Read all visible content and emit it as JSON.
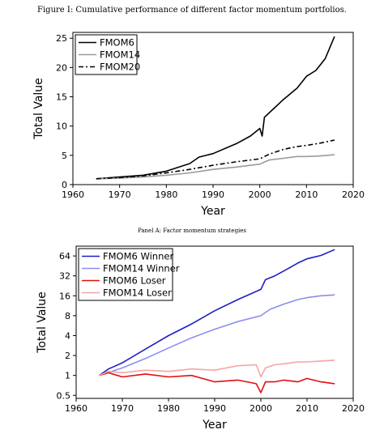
{
  "figure_title": "Figure I: Cumulative performance of different factor momentum portfolios.",
  "panel_a_caption": "Panel A: Factor momentum strategies",
  "chart_data": [
    {
      "type": "line",
      "title": "",
      "xlabel": "Year",
      "ylabel": "Total Value",
      "xlim": [
        1960,
        2020
      ],
      "ylim": [
        0,
        26
      ],
      "xticks": [
        1960,
        1970,
        1980,
        1990,
        2000,
        2010,
        2020
      ],
      "yticks": [
        0,
        5,
        10,
        15,
        20,
        25
      ],
      "legend_position": "top-left",
      "grid": false,
      "series": [
        {
          "name": "FMOM6",
          "color": "#000000",
          "dash": "solid",
          "x": [
            1965,
            1970,
            1975,
            1980,
            1985,
            1987,
            1990,
            1995,
            1998,
            2000,
            2000.5,
            2001,
            2003,
            2005,
            2008,
            2010,
            2012,
            2014,
            2016
          ],
          "y": [
            1.0,
            1.3,
            1.6,
            2.3,
            3.6,
            4.7,
            5.3,
            7.0,
            8.3,
            9.6,
            8.3,
            11.5,
            13.0,
            14.5,
            16.5,
            18.5,
            19.5,
            21.5,
            25.3
          ]
        },
        {
          "name": "FMOM14",
          "color": "#9a9a9a",
          "dash": "solid",
          "x": [
            1965,
            1970,
            1975,
            1980,
            1985,
            1990,
            1995,
            2000,
            2002,
            2005,
            2008,
            2010,
            2013,
            2016
          ],
          "y": [
            1.0,
            1.1,
            1.3,
            1.6,
            2.0,
            2.6,
            3.0,
            3.5,
            4.2,
            4.5,
            4.8,
            4.8,
            4.9,
            5.1
          ]
        },
        {
          "name": "FMOM20",
          "color": "#000000",
          "dash": "dashdot",
          "x": [
            1965,
            1970,
            1975,
            1980,
            1985,
            1990,
            1995,
            2000,
            2002,
            2005,
            2008,
            2010,
            2013,
            2016
          ],
          "y": [
            1.0,
            1.2,
            1.5,
            2.0,
            2.6,
            3.3,
            3.9,
            4.4,
            5.2,
            6.0,
            6.5,
            6.7,
            7.1,
            7.6
          ]
        }
      ]
    },
    {
      "type": "line",
      "title": "",
      "xlabel": "Year",
      "ylabel": "Total Value",
      "yscale": "log2",
      "xlim": [
        1960,
        2020
      ],
      "ylim": [
        0.45,
        90
      ],
      "xticks": [
        1960,
        1970,
        1980,
        1990,
        2000,
        2010,
        2020
      ],
      "yticks": [
        0.5,
        1,
        2,
        4,
        8,
        16,
        32,
        64
      ],
      "legend_position": "top-left",
      "grid": false,
      "series": [
        {
          "name": "FMOM6 Winner",
          "color": "#1f1fc8",
          "dash": "solid",
          "x": [
            1965,
            1967,
            1970,
            1975,
            1980,
            1985,
            1990,
            1995,
            2000,
            2001,
            2003,
            2005,
            2008,
            2010,
            2013,
            2016
          ],
          "y": [
            1.0,
            1.25,
            1.55,
            2.5,
            4.0,
            6.0,
            9.5,
            14.0,
            20.0,
            28.0,
            32.0,
            38.0,
            50.0,
            58.0,
            65.0,
            80.0
          ]
        },
        {
          "name": "FMOM14 Winner",
          "color": "#8c8cf0",
          "dash": "solid",
          "x": [
            1965,
            1970,
            1975,
            1980,
            1985,
            1990,
            1995,
            2000,
            2002,
            2005,
            2008,
            2010,
            2013,
            2016
          ],
          "y": [
            1.0,
            1.3,
            1.8,
            2.6,
            3.7,
            5.0,
            6.5,
            8.0,
            10.0,
            12.0,
            14.0,
            15.0,
            16.0,
            16.5
          ]
        },
        {
          "name": "FMOM6 Loser",
          "color": "#e01010",
          "dash": "solid",
          "x": [
            1965,
            1967,
            1970,
            1975,
            1980,
            1985,
            1990,
            1995,
            1999,
            2000,
            2001,
            2003,
            2005,
            2008,
            2010,
            2013,
            2016
          ],
          "y": [
            1.0,
            1.1,
            0.95,
            1.05,
            0.95,
            1.0,
            0.8,
            0.85,
            0.75,
            0.55,
            0.8,
            0.8,
            0.85,
            0.8,
            0.9,
            0.8,
            0.75
          ]
        },
        {
          "name": "FMOM14 Loser",
          "color": "#f4a5a5",
          "dash": "solid",
          "x": [
            1965,
            1967,
            1970,
            1975,
            1980,
            1985,
            1990,
            1995,
            1999,
            2000,
            2001,
            2003,
            2005,
            2008,
            2010,
            2013,
            2016
          ],
          "y": [
            1.0,
            1.15,
            1.1,
            1.2,
            1.15,
            1.25,
            1.2,
            1.4,
            1.45,
            0.95,
            1.3,
            1.45,
            1.5,
            1.6,
            1.6,
            1.65,
            1.7
          ]
        }
      ]
    }
  ]
}
